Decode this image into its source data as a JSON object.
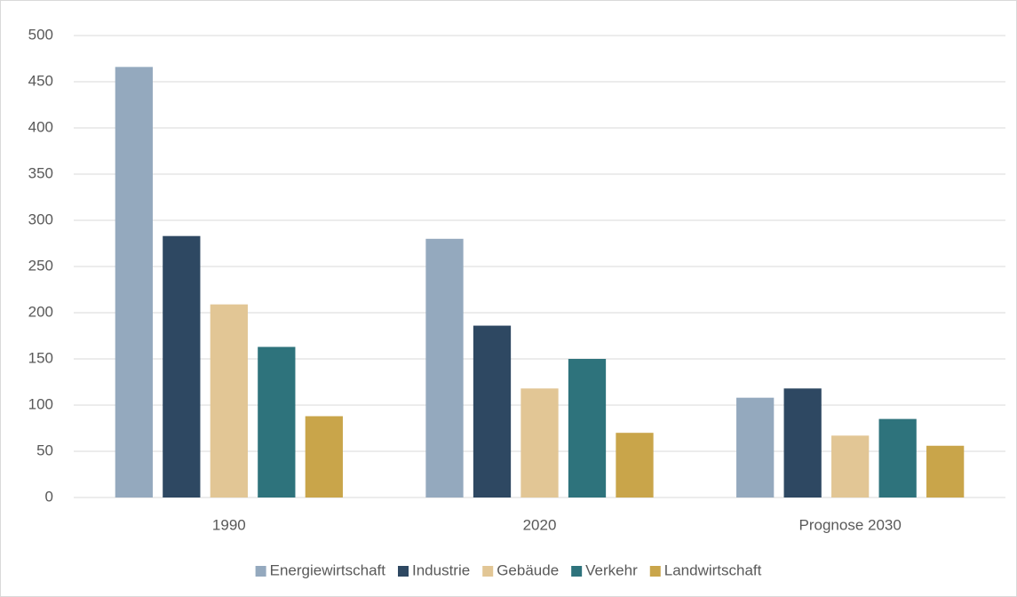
{
  "chart_data": {
    "type": "bar",
    "categories": [
      "1990",
      "2020",
      "Prognose 2030"
    ],
    "series": [
      {
        "name": "Energiewirtschaft",
        "color": "#94a9be",
        "values": [
          466,
          280,
          108
        ]
      },
      {
        "name": "Industrie",
        "color": "#2e4862",
        "values": [
          283,
          186,
          118
        ]
      },
      {
        "name": "Gebäude",
        "color": "#e2c695",
        "values": [
          209,
          118,
          67
        ]
      },
      {
        "name": "Verkehr",
        "color": "#2e737c",
        "values": [
          163,
          150,
          85
        ]
      },
      {
        "name": "Landwirtschaft",
        "color": "#c9a54a",
        "values": [
          88,
          70,
          56
        ]
      }
    ],
    "ylim": [
      0,
      500
    ],
    "yticks": [
      0,
      50,
      100,
      150,
      200,
      250,
      300,
      350,
      400,
      450,
      500
    ],
    "grid": true,
    "legend": "bottom"
  }
}
